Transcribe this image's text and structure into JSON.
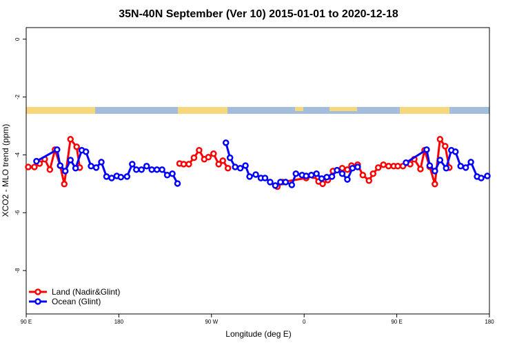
{
  "chart_data": {
    "type": "line",
    "title": "35N-40N September (Ver 10)   2015-01-01 to 2020-12-18",
    "x_label": "Longitude (deg E)",
    "y_label": "XCO2 - MLO trend (ppm)",
    "xlim": [
      90,
      540
    ],
    "ylim": [
      -9.5,
      0.4
    ],
    "xticks": [
      {
        "value": 90,
        "label": "90 E"
      },
      180,
      {
        "value": 270,
        "label": "90 W"
      },
      {
        "value": 360,
        "label": "0"
      },
      {
        "value": 450,
        "label": "90 E"
      },
      {
        "value": 540,
        "label": "180"
      }
    ],
    "yticks": [
      0,
      -2,
      -4,
      -6,
      -8
    ],
    "legend": "bottom-left",
    "series": [
      {
        "name": "Land (Nadir&Glint)",
        "color": "#ff0000",
        "x": [
          92,
          98,
          103,
          108,
          113,
          118,
          123,
          127,
          133,
          139,
          142,
          200,
          239,
          243,
          248,
          253,
          258,
          263,
          267,
          272,
          277,
          281,
          286,
          310,
          334,
          339,
          362,
          369,
          374,
          378,
          383,
          388,
          397,
          402,
          406,
          412,
          417,
          423,
          427,
          432,
          437,
          442,
          447,
          451,
          456,
          463,
          467,
          473,
          477,
          482,
          487,
          492,
          497,
          501
        ],
        "values": [
          -4.42,
          -4.42,
          -4.3,
          -4.15,
          -4.51,
          -3.82,
          -4.37,
          -5.01,
          -3.46,
          -3.72,
          -4.44,
          null,
          -4.3,
          -4.32,
          -4.32,
          -4.1,
          -3.84,
          -4.15,
          -4.08,
          -3.96,
          -4.32,
          -4.2,
          -4.46,
          null,
          -5.1,
          -4.94,
          -4.8,
          -4.72,
          -4.92,
          -5.0,
          -4.87,
          -4.56,
          -4.46,
          -4.51,
          -4.37,
          -4.34,
          -4.7,
          -4.89,
          -4.65,
          -4.44,
          -4.34,
          -4.39,
          -4.39,
          -4.39,
          -4.39,
          -4.32,
          -4.15,
          -4.49,
          -3.84,
          -4.41,
          -5.01,
          -3.46,
          -3.7,
          -4.44
        ]
      },
      {
        "name": "Ocean (Glint)",
        "color": "#0000ff",
        "x": [
          100,
          120,
          123,
          128,
          133,
          138,
          144,
          148,
          153,
          158,
          163,
          168,
          173,
          178,
          182,
          188,
          193,
          197,
          202,
          207,
          212,
          217,
          222,
          227,
          232,
          237,
          260,
          284,
          288,
          293,
          298,
          303,
          307,
          313,
          318,
          322,
          327,
          332,
          337,
          342,
          348,
          352,
          358,
          362,
          367,
          372,
          377,
          382,
          387,
          392,
          397,
          402,
          407,
          412,
          440,
          459,
          479,
          482,
          487,
          492,
          498,
          503,
          507,
          512,
          517,
          522,
          528,
          532,
          538
        ],
        "values": [
          -4.22,
          -3.82,
          -4.37,
          -4.56,
          -4.18,
          -4.46,
          -3.84,
          -3.89,
          -4.39,
          -4.44,
          -4.25,
          -4.75,
          -4.8,
          -4.73,
          -4.77,
          -4.75,
          -4.32,
          -4.51,
          -4.51,
          -4.39,
          -4.51,
          -4.51,
          -4.51,
          -4.7,
          -4.65,
          -4.99,
          null,
          -3.58,
          -4.1,
          -4.42,
          -4.46,
          -4.37,
          -4.75,
          -4.68,
          -4.8,
          -4.8,
          -4.94,
          -5.06,
          -4.94,
          -4.94,
          -5.04,
          -4.65,
          -4.7,
          -4.73,
          -4.7,
          -4.65,
          -4.82,
          -4.77,
          -4.75,
          -4.53,
          -4.65,
          -4.85,
          -4.46,
          -4.42,
          null,
          -4.27,
          -3.82,
          -4.37,
          -4.56,
          -4.18,
          -4.46,
          -3.84,
          -3.89,
          -4.39,
          -4.44,
          -4.25,
          -4.75,
          -4.8,
          -4.73
        ]
      }
    ]
  }
}
